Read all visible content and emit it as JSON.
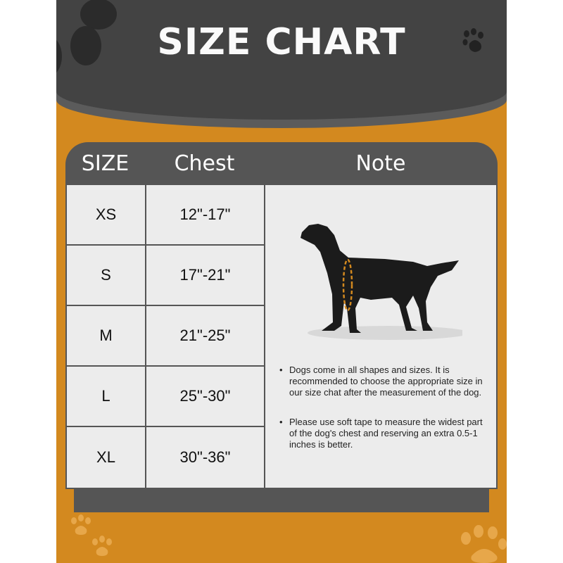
{
  "title": "SIZE CHART",
  "headers": {
    "size": "SIZE",
    "chest": "Chest",
    "note": "Note"
  },
  "rows": [
    {
      "size": "XS",
      "chest": "12\"-17\""
    },
    {
      "size": "S",
      "chest": "17\"-21\""
    },
    {
      "size": "M",
      "chest": "21\"-25\""
    },
    {
      "size": "L",
      "chest": "25\"-30\""
    },
    {
      "size": "XL",
      "chest": "30\"-36\""
    }
  ],
  "notes": [
    "Dogs come in all shapes and sizes. It is recommended to choose the appropriate size in our size chat after the measurement of the dog.",
    "Please use soft tape to measure the widest part of the dog's chest and reserving an extra 0.5-1 inches is better."
  ],
  "colors": {
    "dark": "#434343",
    "orange": "#d3891f",
    "table_header": "#555555",
    "cell": "#ececec",
    "tape": "#d3891f"
  }
}
